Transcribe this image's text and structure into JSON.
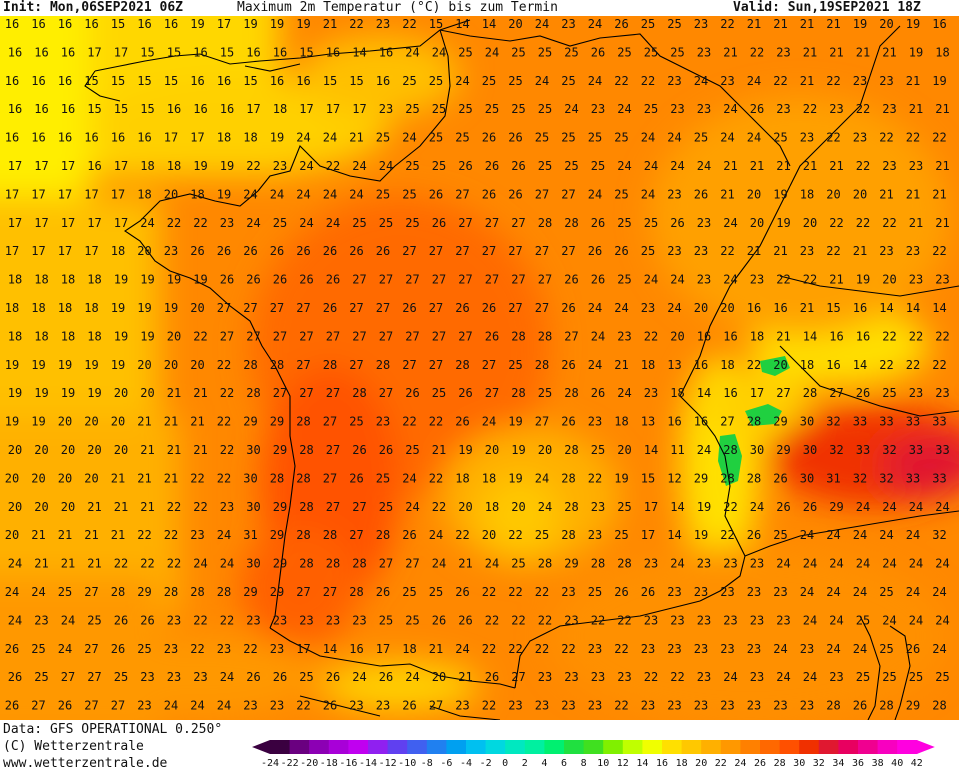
{
  "header": {
    "init": "Init: Mon,06SEP2021 06Z",
    "title": "Maximum 2m Temperatur (°C) bis zum Termin",
    "valid": "Valid: Sun,19SEP2021 18Z"
  },
  "footer": {
    "data_source": "Data: GFS OPERATIONAL 0.250°",
    "copyright": "(C) Wetterzentrale",
    "website": "www.wetterzentrale.de"
  },
  "legend": {
    "ticks": [
      "-24",
      "-22",
      "-20",
      "-18",
      "-16",
      "-14",
      "-12",
      "-10",
      "-8",
      "-6",
      "-4",
      "-2",
      "0",
      "2",
      "4",
      "6",
      "8",
      "10",
      "12",
      "14",
      "16",
      "18",
      "20",
      "22",
      "24",
      "26",
      "28",
      "30",
      "32",
      "34",
      "36",
      "38",
      "40",
      "42"
    ],
    "colors": [
      "#3a0040",
      "#6a0080",
      "#8c00b4",
      "#a800d8",
      "#c000f0",
      "#9020f0",
      "#6040f0",
      "#4060f0",
      "#2080f0",
      "#00a0f0",
      "#00c0f0",
      "#00d8e0",
      "#00e8c0",
      "#00f0a0",
      "#00f070",
      "#20e040",
      "#40e020",
      "#80f000",
      "#c0ff00",
      "#f0ff00",
      "#ffe000",
      "#ffc800",
      "#ffb000",
      "#ff9800",
      "#ff8000",
      "#ff6800",
      "#ff5000",
      "#f03000",
      "#e01830",
      "#e80060",
      "#f00090",
      "#f800c0",
      "#ff00e0"
    ]
  },
  "grid": [
    [
      "16",
      "16",
      "16",
      "16",
      "15",
      "16",
      "16",
      "19",
      "17",
      "19",
      "19",
      "19",
      "21",
      "22",
      "23",
      "22",
      "15",
      "14",
      "14",
      "20",
      "24",
      "23",
      "24",
      "26",
      "25",
      "25",
      "23",
      "22",
      "21",
      "21",
      "21",
      "21",
      "19",
      "20",
      "19",
      "16"
    ],
    [
      "16",
      "16",
      "16",
      "17",
      "17",
      "15",
      "15",
      "16",
      "15",
      "16",
      "16",
      "15",
      "16",
      "14",
      "16",
      "24",
      "24",
      "25",
      "24",
      "25",
      "25",
      "25",
      "26",
      "25",
      "25",
      "25",
      "23",
      "21",
      "22",
      "23",
      "21",
      "21",
      "21",
      "21",
      "19",
      "18"
    ],
    [
      "16",
      "16",
      "16",
      "15",
      "15",
      "15",
      "15",
      "16",
      "16",
      "15",
      "16",
      "16",
      "15",
      "15",
      "16",
      "25",
      "25",
      "24",
      "25",
      "25",
      "24",
      "25",
      "24",
      "22",
      "22",
      "23",
      "24",
      "23",
      "24",
      "22",
      "21",
      "22",
      "23",
      "23",
      "21",
      "19"
    ],
    [
      "16",
      "16",
      "16",
      "15",
      "15",
      "15",
      "16",
      "16",
      "16",
      "17",
      "18",
      "17",
      "17",
      "17",
      "23",
      "25",
      "25",
      "25",
      "25",
      "25",
      "25",
      "24",
      "23",
      "24",
      "25",
      "23",
      "23",
      "24",
      "26",
      "23",
      "22",
      "23",
      "22",
      "23",
      "21",
      "21"
    ],
    [
      "16",
      "16",
      "16",
      "16",
      "16",
      "16",
      "17",
      "17",
      "18",
      "18",
      "19",
      "24",
      "24",
      "21",
      "25",
      "24",
      "25",
      "25",
      "26",
      "26",
      "25",
      "25",
      "25",
      "25",
      "24",
      "24",
      "25",
      "24",
      "24",
      "25",
      "23",
      "22",
      "23",
      "22",
      "22",
      "22"
    ],
    [
      "17",
      "17",
      "17",
      "16",
      "17",
      "18",
      "18",
      "19",
      "19",
      "22",
      "23",
      "24",
      "22",
      "24",
      "24",
      "25",
      "25",
      "26",
      "26",
      "26",
      "25",
      "25",
      "25",
      "24",
      "24",
      "24",
      "24",
      "21",
      "21",
      "21",
      "21",
      "21",
      "22",
      "23",
      "23",
      "21"
    ],
    [
      "17",
      "17",
      "17",
      "17",
      "17",
      "18",
      "20",
      "18",
      "19",
      "24",
      "24",
      "24",
      "24",
      "24",
      "25",
      "25",
      "26",
      "27",
      "26",
      "26",
      "27",
      "27",
      "24",
      "25",
      "24",
      "23",
      "26",
      "21",
      "20",
      "19",
      "18",
      "20",
      "20",
      "21",
      "21",
      "21"
    ],
    [
      "17",
      "17",
      "17",
      "17",
      "17",
      "24",
      "22",
      "22",
      "23",
      "24",
      "25",
      "24",
      "24",
      "25",
      "25",
      "25",
      "26",
      "27",
      "27",
      "27",
      "28",
      "28",
      "26",
      "25",
      "25",
      "26",
      "23",
      "24",
      "20",
      "19",
      "20",
      "22",
      "22",
      "22",
      "21",
      "21"
    ],
    [
      "17",
      "17",
      "17",
      "17",
      "18",
      "20",
      "23",
      "26",
      "26",
      "26",
      "26",
      "26",
      "26",
      "26",
      "26",
      "27",
      "27",
      "27",
      "27",
      "27",
      "27",
      "27",
      "26",
      "26",
      "25",
      "23",
      "23",
      "22",
      "21",
      "21",
      "23",
      "22",
      "21",
      "23",
      "23",
      "22"
    ],
    [
      "18",
      "18",
      "18",
      "18",
      "19",
      "19",
      "19",
      "19",
      "26",
      "26",
      "26",
      "26",
      "26",
      "27",
      "27",
      "27",
      "27",
      "27",
      "27",
      "27",
      "27",
      "26",
      "26",
      "25",
      "24",
      "24",
      "23",
      "24",
      "23",
      "22",
      "22",
      "21",
      "19",
      "20",
      "23",
      "23"
    ],
    [
      "18",
      "18",
      "18",
      "18",
      "19",
      "19",
      "19",
      "20",
      "27",
      "27",
      "27",
      "27",
      "26",
      "27",
      "27",
      "26",
      "27",
      "26",
      "26",
      "27",
      "27",
      "26",
      "24",
      "24",
      "23",
      "24",
      "20",
      "20",
      "16",
      "16",
      "21",
      "15",
      "16",
      "14",
      "14",
      "14"
    ],
    [
      "18",
      "18",
      "18",
      "18",
      "19",
      "19",
      "20",
      "22",
      "27",
      "27",
      "27",
      "27",
      "27",
      "27",
      "27",
      "27",
      "27",
      "27",
      "26",
      "28",
      "28",
      "27",
      "24",
      "23",
      "22",
      "20",
      "16",
      "16",
      "18",
      "21",
      "14",
      "16",
      "16",
      "22",
      "22",
      "22"
    ],
    [
      "19",
      "19",
      "19",
      "19",
      "19",
      "20",
      "20",
      "20",
      "22",
      "28",
      "28",
      "27",
      "28",
      "27",
      "28",
      "27",
      "27",
      "28",
      "27",
      "25",
      "28",
      "26",
      "24",
      "21",
      "18",
      "13",
      "16",
      "18",
      "22",
      "20",
      "18",
      "16",
      "14",
      "22",
      "22",
      "22"
    ],
    [
      "19",
      "19",
      "19",
      "19",
      "20",
      "20",
      "21",
      "21",
      "22",
      "28",
      "27",
      "27",
      "27",
      "28",
      "27",
      "26",
      "25",
      "26",
      "27",
      "28",
      "25",
      "28",
      "26",
      "24",
      "23",
      "18",
      "14",
      "16",
      "17",
      "27",
      "28",
      "27",
      "26",
      "25",
      "23",
      "23"
    ],
    [
      "19",
      "19",
      "20",
      "20",
      "20",
      "21",
      "21",
      "21",
      "22",
      "29",
      "29",
      "28",
      "27",
      "25",
      "23",
      "22",
      "22",
      "26",
      "24",
      "19",
      "27",
      "26",
      "23",
      "18",
      "13",
      "16",
      "16",
      "27",
      "28",
      "29",
      "30",
      "32",
      "33",
      "33",
      "33",
      "33"
    ],
    [
      "20",
      "20",
      "20",
      "20",
      "20",
      "21",
      "21",
      "21",
      "22",
      "30",
      "29",
      "28",
      "27",
      "26",
      "26",
      "25",
      "21",
      "19",
      "20",
      "19",
      "20",
      "28",
      "25",
      "20",
      "14",
      "11",
      "24",
      "28",
      "30",
      "29",
      "30",
      "32",
      "33",
      "32",
      "33",
      "33"
    ],
    [
      "20",
      "20",
      "20",
      "20",
      "21",
      "21",
      "21",
      "22",
      "22",
      "30",
      "28",
      "28",
      "27",
      "26",
      "25",
      "24",
      "22",
      "18",
      "18",
      "19",
      "24",
      "28",
      "22",
      "19",
      "15",
      "12",
      "29",
      "28",
      "28",
      "26",
      "30",
      "31",
      "32",
      "32",
      "33",
      "33"
    ],
    [
      "20",
      "20",
      "20",
      "21",
      "21",
      "21",
      "22",
      "22",
      "23",
      "30",
      "29",
      "28",
      "27",
      "27",
      "25",
      "24",
      "22",
      "20",
      "18",
      "20",
      "24",
      "28",
      "23",
      "25",
      "17",
      "14",
      "19",
      "22",
      "24",
      "26",
      "26",
      "29",
      "24",
      "24",
      "24",
      "24"
    ],
    [
      "20",
      "21",
      "21",
      "21",
      "21",
      "22",
      "22",
      "23",
      "24",
      "31",
      "29",
      "28",
      "28",
      "27",
      "28",
      "26",
      "24",
      "22",
      "20",
      "22",
      "25",
      "28",
      "23",
      "25",
      "17",
      "14",
      "19",
      "22",
      "26",
      "25",
      "24",
      "24",
      "24",
      "24",
      "24",
      "32"
    ],
    [
      "24",
      "21",
      "21",
      "21",
      "22",
      "22",
      "22",
      "24",
      "24",
      "30",
      "29",
      "28",
      "28",
      "28",
      "27",
      "27",
      "24",
      "21",
      "24",
      "25",
      "28",
      "29",
      "28",
      "28",
      "23",
      "24",
      "23",
      "23",
      "23",
      "24",
      "24",
      "24",
      "24",
      "24",
      "24",
      "24"
    ],
    [
      "24",
      "24",
      "25",
      "27",
      "28",
      "29",
      "28",
      "28",
      "28",
      "29",
      "29",
      "27",
      "27",
      "28",
      "26",
      "25",
      "25",
      "26",
      "22",
      "22",
      "22",
      "23",
      "25",
      "26",
      "26",
      "23",
      "23",
      "23",
      "23",
      "23",
      "24",
      "24",
      "24",
      "25",
      "24",
      "24"
    ],
    [
      "24",
      "23",
      "24",
      "25",
      "26",
      "26",
      "23",
      "22",
      "22",
      "23",
      "23",
      "23",
      "23",
      "23",
      "25",
      "25",
      "26",
      "26",
      "22",
      "22",
      "22",
      "23",
      "22",
      "22",
      "23",
      "23",
      "23",
      "23",
      "23",
      "23",
      "24",
      "24",
      "25",
      "24",
      "24",
      "24"
    ],
    [
      "26",
      "25",
      "24",
      "27",
      "26",
      "25",
      "23",
      "22",
      "23",
      "22",
      "23",
      "17",
      "14",
      "16",
      "17",
      "18",
      "21",
      "24",
      "22",
      "22",
      "22",
      "22",
      "23",
      "22",
      "23",
      "23",
      "23",
      "23",
      "23",
      "24",
      "23",
      "24",
      "24",
      "25",
      "26",
      "24"
    ],
    [
      "26",
      "25",
      "27",
      "27",
      "25",
      "23",
      "23",
      "23",
      "24",
      "26",
      "26",
      "25",
      "26",
      "24",
      "26",
      "24",
      "20",
      "21",
      "26",
      "27",
      "23",
      "23",
      "23",
      "23",
      "22",
      "22",
      "23",
      "24",
      "23",
      "24",
      "24",
      "23",
      "25",
      "25",
      "25",
      "25"
    ],
    [
      "26",
      "27",
      "26",
      "27",
      "27",
      "23",
      "24",
      "24",
      "24",
      "23",
      "23",
      "22",
      "26",
      "23",
      "23",
      "26",
      "27",
      "23",
      "22",
      "23",
      "23",
      "23",
      "23",
      "22",
      "23",
      "23",
      "23",
      "23",
      "23",
      "23",
      "23",
      "28",
      "26",
      "28",
      "29",
      "28"
    ]
  ]
}
